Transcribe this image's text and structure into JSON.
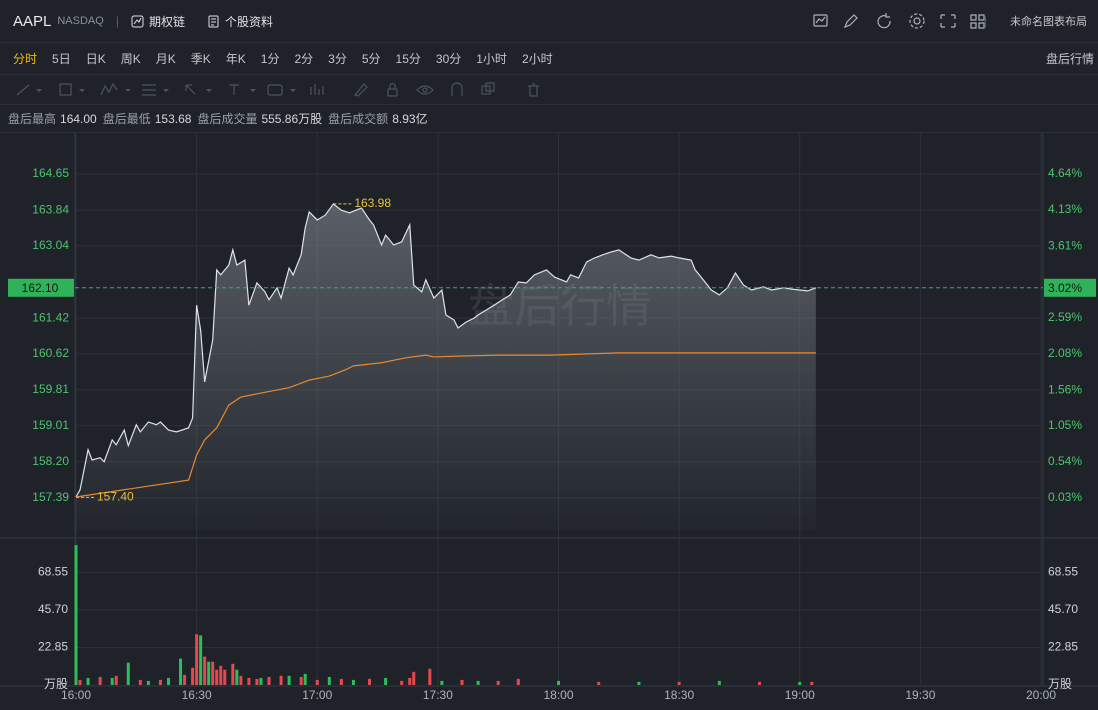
{
  "header": {
    "symbol": "AAPL",
    "exchange": "NASDAQ",
    "links": [
      "期权链",
      "个股资料"
    ],
    "layout_name": "未命名图表布局"
  },
  "tabs": {
    "items": [
      "分时",
      "5日",
      "日K",
      "周K",
      "月K",
      "季K",
      "年K",
      "1分",
      "2分",
      "3分",
      "5分",
      "15分",
      "30分",
      "1小时",
      "2小时"
    ],
    "active": 0,
    "right": "盘后行情"
  },
  "stats": [
    {
      "label": "盘后最高",
      "value": "164.00"
    },
    {
      "label": "盘后最低",
      "value": "153.68"
    },
    {
      "label": "盘后成交量",
      "value": "555.86万股"
    },
    {
      "label": "盘后成交额",
      "value": "8.93亿"
    }
  ],
  "watermark": "盘后行情",
  "chart_data": [
    {
      "type": "line",
      "area": true,
      "grid": true,
      "ylim": [
        156.67,
        165.57
      ],
      "yticks": [
        {
          "value": 164.65,
          "label": "164.65"
        },
        {
          "value": 163.84,
          "label": "163.84"
        },
        {
          "value": 163.04,
          "label": "163.04"
        },
        {
          "value": 161.42,
          "label": "161.42"
        },
        {
          "value": 160.62,
          "label": "160.62"
        },
        {
          "value": 159.81,
          "label": "159.81"
        },
        {
          "value": 159.01,
          "label": "159.01"
        },
        {
          "value": 158.2,
          "label": "158.20"
        },
        {
          "value": 157.39,
          "label": "157.39"
        }
      ],
      "y2lim": [
        -0.43,
        5.22
      ],
      "y2ticks": [
        {
          "value": 4.64,
          "label": "4.64%"
        },
        {
          "value": 4.13,
          "label": "4.13%"
        },
        {
          "value": 3.61,
          "label": "3.61%"
        },
        {
          "value": 2.59,
          "label": "2.59%"
        },
        {
          "value": 2.08,
          "label": "2.08%"
        },
        {
          "value": 1.56,
          "label": "1.56%"
        },
        {
          "value": 1.05,
          "label": "1.05%"
        },
        {
          "value": 0.54,
          "label": "0.54%"
        },
        {
          "value": 0.03,
          "label": "0.03%"
        }
      ],
      "current": {
        "value": 162.1,
        "label": "162.10"
      },
      "current_change": {
        "value": 3.02,
        "label": "3.02%"
      },
      "annotations": [
        {
          "x": "17:04",
          "value": 163.98
        },
        {
          "x": "16:00",
          "value": 157.4,
          "label": "157.40"
        }
      ],
      "series": [
        {
          "color": "#dfe3e8",
          "x": [
            "16:00",
            "16:01",
            "16:03",
            "16:04",
            "16:06",
            "16:07",
            "16:09",
            "16:10",
            "16:12",
            "16:13",
            "16:15",
            "16:16",
            "16:18",
            "16:20",
            "16:21",
            "16:23",
            "16:25",
            "16:28",
            "16:29",
            "16:30",
            "16:31",
            "16:32",
            "16:34",
            "16:35",
            "16:36",
            "16:38",
            "16:39",
            "16:40",
            "16:42",
            "16:43",
            "16:45",
            "16:47",
            "16:48",
            "16:50",
            "16:51",
            "16:53",
            "16:54",
            "16:56",
            "16:57",
            "16:58",
            "17:00",
            "17:02",
            "17:04",
            "17:06",
            "17:08",
            "17:11",
            "17:13",
            "17:14",
            "17:16",
            "17:17",
            "17:19",
            "17:21",
            "17:23",
            "17:24",
            "17:26",
            "17:27",
            "17:29",
            "17:31",
            "17:32",
            "17:34",
            "17:35",
            "17:37",
            "17:39",
            "17:40",
            "17:42",
            "17:44",
            "17:46",
            "17:48",
            "17:50",
            "17:52",
            "17:54",
            "17:57",
            "17:59",
            "18:02",
            "18:03",
            "18:05",
            "18:07",
            "18:09",
            "18:11",
            "18:13",
            "18:15",
            "18:18",
            "18:20",
            "18:23",
            "18:25",
            "18:28",
            "18:30",
            "18:33",
            "18:34",
            "18:36",
            "18:38",
            "18:40",
            "18:42",
            "18:44",
            "18:46",
            "18:48",
            "18:51",
            "18:53",
            "18:56",
            "18:58",
            "19:00",
            "19:02",
            "19:04"
          ],
          "values": [
            157.41,
            157.57,
            158.47,
            158.24,
            158.29,
            158.2,
            158.69,
            158.58,
            158.91,
            158.56,
            159.03,
            158.87,
            159.09,
            159.03,
            159.09,
            158.91,
            158.87,
            158.96,
            159.18,
            161.71,
            161.15,
            159.99,
            160.93,
            162.5,
            162.39,
            162.61,
            162.95,
            162.61,
            162.72,
            161.71,
            162.21,
            162.01,
            161.83,
            162.1,
            161.87,
            162.54,
            162.39,
            162.84,
            163.44,
            163.8,
            163.62,
            163.73,
            163.98,
            163.84,
            163.78,
            163.89,
            163.62,
            163.51,
            163.06,
            163.28,
            163.06,
            163.13,
            163.51,
            162.16,
            162.01,
            162.28,
            161.87,
            162.05,
            161.49,
            161.38,
            161.2,
            161.33,
            161.42,
            161.49,
            161.6,
            161.71,
            161.83,
            161.94,
            162.23,
            162.21,
            162.39,
            162.5,
            162.34,
            162.23,
            162.39,
            162.32,
            162.68,
            162.77,
            162.84,
            162.9,
            162.95,
            162.77,
            162.72,
            162.84,
            162.77,
            162.81,
            162.77,
            162.72,
            162.5,
            162.28,
            162.05,
            161.94,
            162.1,
            162.43,
            162.16,
            162.05,
            162.12,
            162.05,
            162.1,
            162.07,
            162.05,
            162.03,
            162.1
          ]
        },
        {
          "color": "#e8892e",
          "x": [
            "16:00",
            "16:28",
            "16:30",
            "16:32",
            "16:35",
            "16:38",
            "16:41",
            "16:46",
            "16:53",
            "16:58",
            "17:03",
            "17:07",
            "17:09",
            "17:16",
            "17:22",
            "17:27",
            "17:29",
            "17:36",
            "17:45",
            "17:58",
            "18:15",
            "18:35",
            "19:04"
          ],
          "values": [
            157.41,
            157.79,
            158.35,
            158.69,
            158.96,
            159.47,
            159.65,
            159.74,
            159.86,
            160.03,
            160.12,
            160.26,
            160.35,
            160.42,
            160.53,
            160.59,
            160.55,
            160.57,
            160.59,
            160.59,
            160.64,
            160.64,
            160.64
          ]
        }
      ]
    },
    {
      "type": "bar",
      "unit": "万股",
      "grid": true,
      "xlim": [
        "16:00",
        "20:00"
      ],
      "xticks": [
        "16:00",
        "16:30",
        "17:00",
        "17:30",
        "18:00",
        "18:30",
        "19:00",
        "19:30",
        "20:00"
      ],
      "ylim": [
        0,
        88.3
      ],
      "yticks": [
        {
          "value": 22.85,
          "label": "22.85"
        },
        {
          "value": 45.7,
          "label": "45.70"
        },
        {
          "value": 68.55,
          "label": "68.55"
        }
      ],
      "series": [
        {
          "color": "#2ebd5b",
          "x": [
            "16:00",
            "16:03",
            "16:09",
            "16:13",
            "16:18",
            "16:23",
            "16:26",
            "16:31",
            "16:33",
            "16:40",
            "16:46",
            "16:53",
            "16:57",
            "17:03",
            "17:09",
            "17:17",
            "17:31",
            "17:40",
            "18:00",
            "18:20",
            "18:40",
            "19:00"
          ],
          "values": [
            85.2,
            4.3,
            4.3,
            13.6,
            2.5,
            4.3,
            16.1,
            30.2,
            14.2,
            9.3,
            4.3,
            5.6,
            6.8,
            4.9,
            3.1,
            4.3,
            2.5,
            2.5,
            2.5,
            1.9,
            2.5,
            1.9
          ]
        },
        {
          "color": "#e5484d",
          "x": [
            "16:01",
            "16:06",
            "16:10",
            "16:16",
            "16:21",
            "16:27",
            "16:29",
            "16:30",
            "16:32",
            "16:34",
            "16:35",
            "16:36",
            "16:37",
            "16:39",
            "16:41",
            "16:43",
            "16:45",
            "16:48",
            "16:51",
            "16:56",
            "17:00",
            "17:06",
            "17:13",
            "17:21",
            "17:23",
            "17:24",
            "17:28",
            "17:36",
            "17:45",
            "17:50",
            "18:10",
            "18:30",
            "18:50",
            "19:03"
          ],
          "values": [
            3.1,
            4.9,
            5.6,
            3.1,
            3.1,
            6.2,
            10.5,
            30.9,
            17.3,
            14.2,
            9.3,
            11.7,
            9.3,
            12.9,
            5.6,
            4.3,
            3.7,
            4.9,
            5.6,
            4.9,
            3.1,
            3.7,
            3.7,
            2.5,
            4.3,
            8.0,
            9.9,
            3.1,
            2.5,
            3.7,
            1.9,
            1.9,
            1.9,
            1.9
          ]
        }
      ]
    }
  ]
}
